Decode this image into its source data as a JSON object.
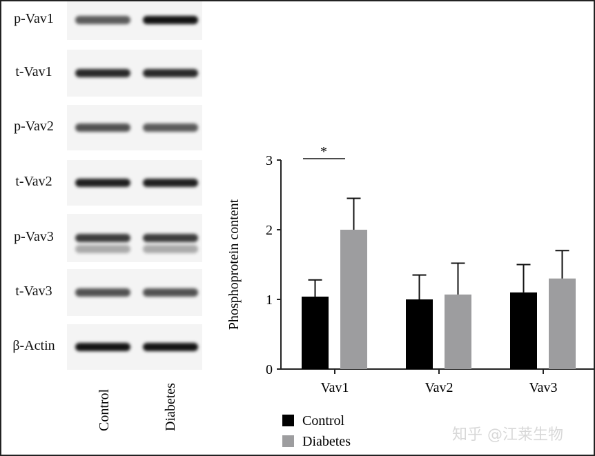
{
  "blot": {
    "rows": [
      {
        "label": "p-Vav1",
        "intensity": [
          0.55,
          0.9
        ]
      },
      {
        "label": "t-Vav1",
        "intensity": [
          0.8,
          0.8
        ]
      },
      {
        "label": "p-Vav2",
        "intensity": [
          0.6,
          0.55
        ]
      },
      {
        "label": "t-Vav2",
        "intensity": [
          0.85,
          0.85
        ]
      },
      {
        "label": "p-Vav3",
        "intensity": [
          0.7,
          0.7
        ]
      },
      {
        "label": "t-Vav3",
        "intensity": [
          0.6,
          0.6
        ]
      },
      {
        "label": "β-Actin",
        "intensity": [
          0.9,
          0.9
        ]
      }
    ],
    "lanes": [
      "Control",
      "Diabetes"
    ]
  },
  "chart_data": {
    "type": "bar",
    "categories": [
      "Vav1",
      "Vav2",
      "Vav3"
    ],
    "ylabel": "Phosphoprotein content",
    "ylim": [
      0,
      3
    ],
    "yticks": [
      "0",
      "1",
      "2",
      "3"
    ],
    "series": [
      {
        "name": "Control",
        "color": "#000000",
        "values": [
          1.04,
          1.0,
          1.1
        ],
        "error": [
          0.24,
          0.35,
          0.4
        ]
      },
      {
        "name": "Diabetes",
        "color": "#9d9d9f",
        "values": [
          2.0,
          1.07,
          1.3
        ],
        "error": [
          0.45,
          0.45,
          0.4
        ]
      }
    ],
    "annotations": [
      {
        "text": "*",
        "between": [
          "Vav1 Control",
          "Vav1 Diabetes"
        ]
      }
    ],
    "legend": "bottom-left"
  },
  "watermark": "知乎 @江莱生物"
}
